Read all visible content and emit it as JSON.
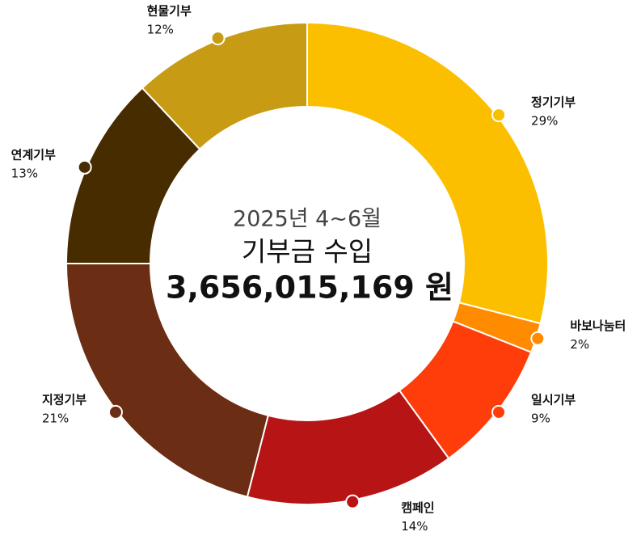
{
  "chart_data": {
    "type": "donut",
    "title": "2025년 4~6월",
    "subtitle": "기부금 수입",
    "total_label": "3,656,015,169 원",
    "categories": [
      "정기기부",
      "바보나눔터",
      "일시기부",
      "캠페인",
      "지정기부",
      "연계기부",
      "현물기부"
    ],
    "values": [
      29,
      2,
      9,
      14,
      21,
      13,
      12
    ],
    "value_labels": [
      "29%",
      "2%",
      "9%",
      "14%",
      "21%",
      "13%",
      "12%"
    ],
    "colors": [
      "#fbbf00",
      "#ff8c00",
      "#ff3d0a",
      "#b71515",
      "#6b2d13",
      "#472c00",
      "#c79c14"
    ]
  }
}
